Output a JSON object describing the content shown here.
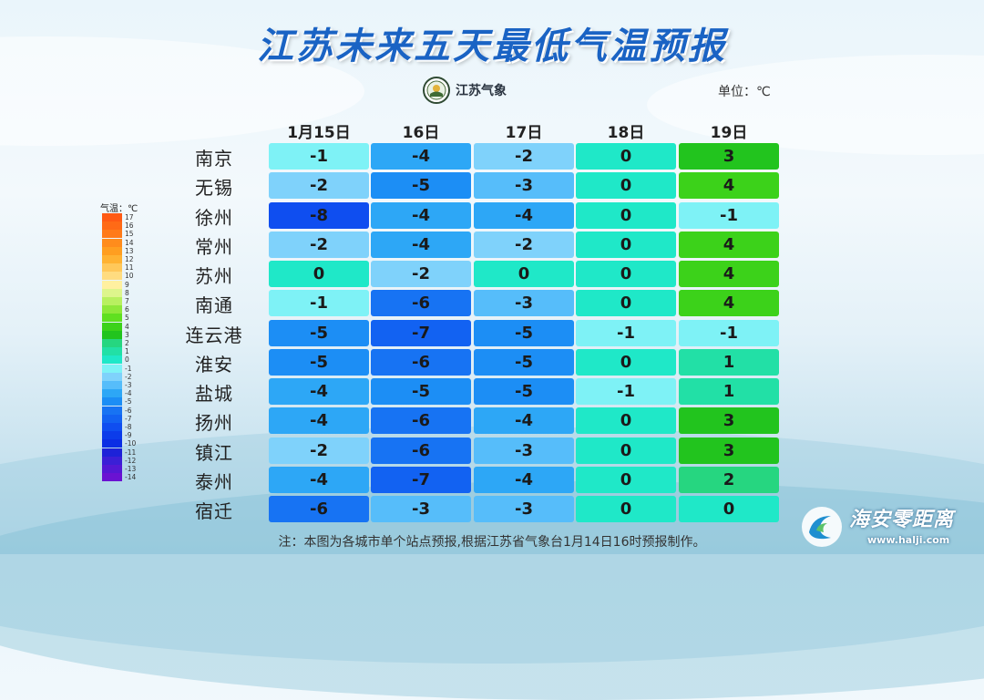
{
  "title": "江苏未来五天最低气温预报",
  "logo_text": "江苏气象",
  "unit": "单位：℃",
  "note": "注：本图为各城市单个站点预报,根据江苏省气象台1月14日16时预报制作。",
  "watermark": {
    "name": "海安零距离",
    "url": "www.halji.com"
  },
  "chart_data": {
    "type": "table",
    "columns": [
      "1月15日",
      "16日",
      "17日",
      "18日",
      "19日"
    ],
    "rows": [
      {
        "city": "南京",
        "values": [
          -1,
          -4,
          -2,
          0,
          3
        ]
      },
      {
        "city": "无锡",
        "values": [
          -2,
          -5,
          -3,
          0,
          4
        ]
      },
      {
        "city": "徐州",
        "values": [
          -8,
          -4,
          -4,
          0,
          -1
        ]
      },
      {
        "city": "常州",
        "values": [
          -2,
          -4,
          -2,
          0,
          4
        ]
      },
      {
        "city": "苏州",
        "values": [
          0,
          -2,
          0,
          0,
          4
        ]
      },
      {
        "city": "南通",
        "values": [
          -1,
          -6,
          -3,
          0,
          4
        ]
      },
      {
        "city": "连云港",
        "values": [
          -5,
          -7,
          -5,
          -1,
          -1
        ]
      },
      {
        "city": "淮安",
        "values": [
          -5,
          -6,
          -5,
          0,
          1
        ]
      },
      {
        "city": "盐城",
        "values": [
          -4,
          -5,
          -5,
          -1,
          1
        ]
      },
      {
        "city": "扬州",
        "values": [
          -4,
          -6,
          -4,
          0,
          3
        ]
      },
      {
        "city": "镇江",
        "values": [
          -2,
          -6,
          -3,
          0,
          3
        ]
      },
      {
        "city": "泰州",
        "values": [
          -4,
          -7,
          -4,
          0,
          2
        ]
      },
      {
        "city": "宿迁",
        "values": [
          -6,
          -3,
          -3,
          0,
          0
        ]
      }
    ],
    "legend": {
      "title": "气温：℃",
      "items": [
        {
          "label": "17",
          "color": "#ff5a14"
        },
        {
          "label": "16",
          "color": "#ff6a16"
        },
        {
          "label": "15",
          "color": "#ff7a18"
        },
        {
          "label": "14",
          "color": "#ff8c1c"
        },
        {
          "label": "13",
          "color": "#ff9e20"
        },
        {
          "label": "12",
          "color": "#ffb232"
        },
        {
          "label": "11",
          "color": "#ffc85a"
        },
        {
          "label": "10",
          "color": "#ffdc80"
        },
        {
          "label": "9",
          "color": "#fff0a0"
        },
        {
          "label": "8",
          "color": "#ddf58c"
        },
        {
          "label": "7",
          "color": "#b8f060"
        },
        {
          "label": "6",
          "color": "#8ee83a"
        },
        {
          "label": "5",
          "color": "#60e020"
        },
        {
          "label": "4",
          "color": "#3cd21a"
        },
        {
          "label": "3",
          "color": "#22c41e"
        },
        {
          "label": "2",
          "color": "#26d680"
        },
        {
          "label": "1",
          "color": "#22e0a6"
        },
        {
          "label": "0",
          "color": "#1fe8c8"
        },
        {
          "label": "-1",
          "color": "#7ef2f6"
        },
        {
          "label": "-2",
          "color": "#7fd2fb"
        },
        {
          "label": "-3",
          "color": "#56bdfa"
        },
        {
          "label": "-4",
          "color": "#2da7f6"
        },
        {
          "label": "-5",
          "color": "#1c8ef5"
        },
        {
          "label": "-6",
          "color": "#1773f3"
        },
        {
          "label": "-7",
          "color": "#1262f2"
        },
        {
          "label": "-8",
          "color": "#0f4ef0"
        },
        {
          "label": "-9",
          "color": "#0c3cea"
        },
        {
          "label": "-10",
          "color": "#0b2ee4"
        },
        {
          "label": "-11",
          "color": "#1d22d8"
        },
        {
          "label": "-12",
          "color": "#3b1fd6"
        },
        {
          "label": "-13",
          "color": "#5418d4"
        },
        {
          "label": "-14",
          "color": "#6a12d2"
        }
      ]
    }
  }
}
